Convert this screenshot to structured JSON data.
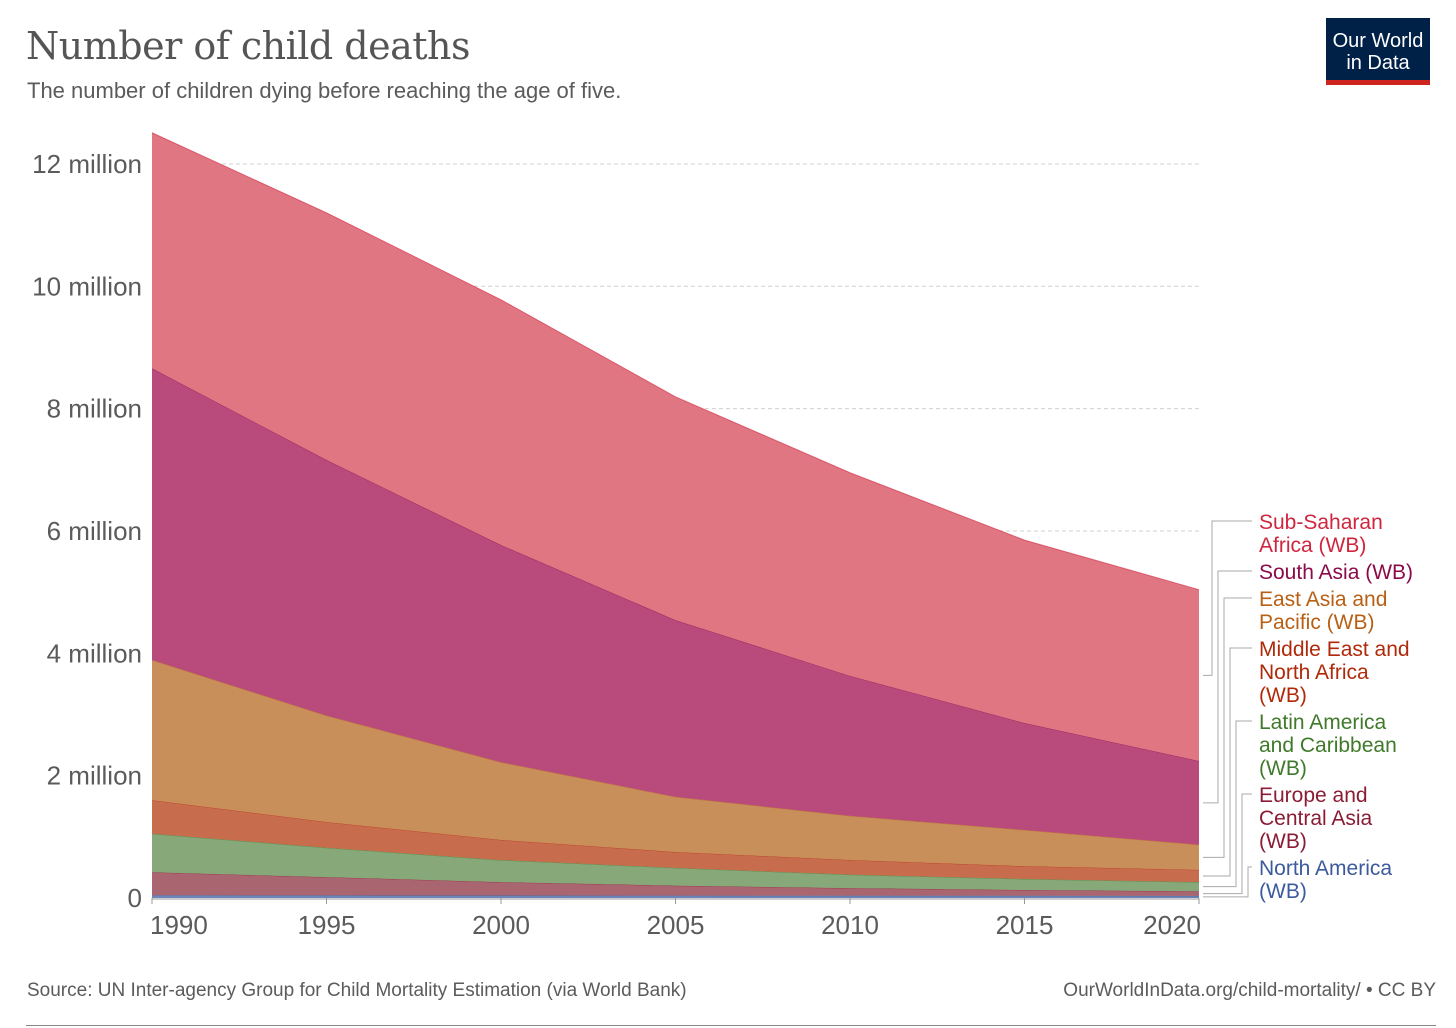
{
  "header": {
    "title": "Number of child deaths",
    "subtitle": "The number of children dying before reaching the age of five.",
    "logo_line1": "Our World",
    "logo_line2": "in Data"
  },
  "footer": {
    "source": "Source: UN Inter-agency Group for Child Mortality Estimation (via World Bank)",
    "license": "OurWorldInData.org/child-mortality/ • CC BY"
  },
  "chart_data": {
    "type": "area",
    "stacked": true,
    "title": "Number of child deaths",
    "xlabel": "",
    "ylabel": "",
    "x": [
      1990,
      1995,
      2000,
      2005,
      2010,
      2015,
      2020
    ],
    "xlim": [
      1990,
      2020
    ],
    "ylim": [
      0,
      12500000
    ],
    "x_ticks": [
      {
        "value": 1990,
        "label": "1990"
      },
      {
        "value": 1995,
        "label": "1995"
      },
      {
        "value": 2000,
        "label": "2000"
      },
      {
        "value": 2005,
        "label": "2005"
      },
      {
        "value": 2010,
        "label": "2010"
      },
      {
        "value": 2015,
        "label": "2015"
      },
      {
        "value": 2020,
        "label": "2020"
      }
    ],
    "y_ticks": [
      {
        "value": 0,
        "label": "0"
      },
      {
        "value": 2000000,
        "label": "2 million"
      },
      {
        "value": 4000000,
        "label": "4 million"
      },
      {
        "value": 6000000,
        "label": "6 million"
      },
      {
        "value": 8000000,
        "label": "8 million"
      },
      {
        "value": 10000000,
        "label": "10 million"
      },
      {
        "value": 12000000,
        "label": "12 million"
      }
    ],
    "grid": true,
    "legend_placement": "right",
    "series": [
      {
        "name": "North America (WB)",
        "label_lines": [
          "North America",
          "(WB)"
        ],
        "fill": "#6c85b8",
        "text": "#3d5a9e",
        "values": [
          45000,
          42000,
          40000,
          38000,
          37000,
          36000,
          35000
        ]
      },
      {
        "name": "Europe and Central Asia (WB)",
        "label_lines": [
          "Europe and",
          "Central Asia",
          "(WB)"
        ],
        "fill": "#a96670",
        "text": "#8a1c35",
        "values": [
          375000,
          300000,
          220000,
          165000,
          125000,
          95000,
          75000
        ]
      },
      {
        "name": "Latin America and Caribbean (WB)",
        "label_lines": [
          "Latin America",
          "and Caribbean",
          "(WB)"
        ],
        "fill": "#87a878",
        "text": "#3f7a2a",
        "values": [
          630000,
          480000,
          360000,
          290000,
          220000,
          180000,
          150000
        ]
      },
      {
        "name": "Middle East and North Africa (WB)",
        "label_lines": [
          "Middle East and",
          "North Africa",
          "(WB)"
        ],
        "fill": "#c86c4e",
        "text": "#b02a0a",
        "values": [
          550000,
          420000,
          330000,
          260000,
          240000,
          210000,
          200000
        ]
      },
      {
        "name": "East Asia and Pacific (WB)",
        "label_lines": [
          "East Asia and",
          "Pacific (WB)"
        ],
        "fill": "#c98f5a",
        "text": "#b86014",
        "values": [
          2290000,
          1740000,
          1270000,
          900000,
          720000,
          590000,
          410000
        ]
      },
      {
        "name": "South Asia (WB)",
        "label_lines": [
          "South Asia (WB)"
        ],
        "fill": "#b84b7b",
        "text": "#8b0a4a",
        "values": [
          4770000,
          4180000,
          3550000,
          2890000,
          2290000,
          1750000,
          1370000
        ]
      },
      {
        "name": "Sub-Saharan Africa (WB)",
        "label_lines": [
          "Sub-Saharan",
          "Africa (WB)"
        ],
        "fill": "#e07682",
        "text": "#d0253f",
        "values": [
          3850000,
          4040000,
          4010000,
          3650000,
          3320000,
          2990000,
          2800000
        ]
      }
    ]
  }
}
